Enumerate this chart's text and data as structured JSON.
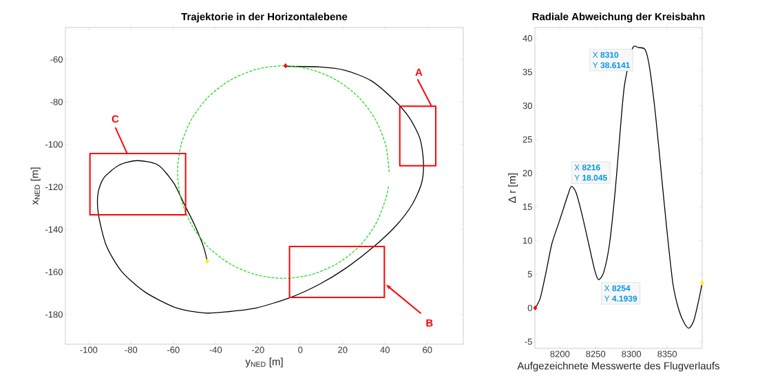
{
  "chart_data": [
    {
      "type": "line",
      "title": "Trajektorie in der Horizontalebene",
      "xlabel": "y$_{NED}$ [m]",
      "ylabel": "x$_{NED}$ [m]",
      "xlim": [
        -111,
        77
      ],
      "ylim": [
        -194,
        -45
      ],
      "xticks": [
        -100,
        -80,
        -60,
        -40,
        -20,
        0,
        20,
        40,
        60
      ],
      "yticks": [
        -180,
        -160,
        -140,
        -120,
        -100,
        -80,
        -60
      ],
      "series": [
        {
          "color": "#000000",
          "x": [
            -7.1,
            8.8,
            21.1,
            33.4,
            44.4,
            51.7,
            56.6,
            58.2,
            57.3,
            53.0,
            45.6,
            34.6,
            21.1,
            8.8,
            -4.7,
            -20.6,
            -34.1,
            -45.1,
            -58.6,
            -73.3,
            -84.4,
            -91.7,
            -95.4,
            -95.6,
            -92.9,
            -85.6,
            -77.0,
            -67.2,
            -59.8,
            -54.9,
            -50.0,
            -45.7,
            -43.9
          ],
          "values": [
            -63.3,
            -63.5,
            -65.1,
            -70.0,
            -79.2,
            -87.7,
            -97.5,
            -108.5,
            -118.2,
            -128.0,
            -137.8,
            -148.2,
            -158.5,
            -165.9,
            -172.0,
            -176.9,
            -178.7,
            -179.3,
            -176.9,
            -169.5,
            -159.8,
            -147.5,
            -132.9,
            -123.1,
            -115.8,
            -109.7,
            -107.6,
            -109.7,
            -118.2,
            -128.0,
            -137.8,
            -148.2,
            -155.5
          ]
        },
        {
          "color": "#22dd22",
          "line_style": "dashed",
          "x": [
            42,
            40.3,
            35.3,
            27.4,
            17,
            4.9,
            -8,
            -20.9,
            -33,
            -43.4,
            -51.3,
            -56.3,
            -58,
            -56.3,
            -51.3,
            -43.4,
            -33,
            -20.9,
            -8,
            4.9,
            17,
            27.4,
            35.3,
            40.3,
            41.6
          ],
          "values": [
            -113,
            -100.1,
            -88,
            -77.6,
            -69.7,
            -64.7,
            -63,
            -64.7,
            -69.7,
            -77.6,
            -88,
            -100.1,
            -113,
            -125.9,
            -138,
            -148.4,
            -156.3,
            -161.3,
            -163,
            -161.3,
            -156.3,
            -148.4,
            -138,
            -125.9,
            -119.5
          ]
        },
        {
          "type": "scatter",
          "color": "#ff0000",
          "marker": "diamond",
          "x": [
            -7
          ],
          "values": [
            -63
          ]
        },
        {
          "type": "scatter",
          "color": "#ffee00",
          "marker": "diamond",
          "x": [
            -44
          ],
          "values": [
            -155
          ]
        }
      ],
      "annotations": [
        "A",
        "B",
        "C"
      ]
    },
    {
      "type": "line",
      "title": "Radiale Abweichung der Kreisbahn",
      "xlabel": "Aufgezeichnete Messwerte des Flugverlaufs",
      "ylabel": "Δ r [m]",
      "xlim": [
        8165,
        8399
      ],
      "ylim": [
        -6,
        41.6
      ],
      "xticks": [
        8200,
        8250,
        8300,
        8350
      ],
      "yticks": [
        -5,
        0,
        5,
        10,
        15,
        20,
        25,
        30,
        35,
        40
      ],
      "series": [
        {
          "color": "#000000",
          "x": [
            8165.5,
            8172.6,
            8180.6,
            8188.7,
            8198.4,
            8204.8,
            8211.3,
            8216,
            8222.6,
            8230.6,
            8240.3,
            8248.4,
            8254,
            8261.3,
            8269.4,
            8277.4,
            8283.9,
            8290.3,
            8301.6,
            8310,
            8319.4,
            8325.8,
            8333.9,
            8341.9,
            8350,
            8358.1,
            8366.1,
            8374.2,
            8380.6,
            8387.1,
            8393.5,
            8399
          ],
          "values": [
            0,
            1.5,
            5.3,
            9.5,
            12.6,
            14.7,
            16.8,
            18.045,
            17.1,
            14.0,
            9.5,
            5.7,
            4.1939,
            5.3,
            9.5,
            17.4,
            25.7,
            33.0,
            38.5,
            38.6141,
            38.3,
            35.4,
            28.5,
            19.9,
            11.2,
            3.6,
            -0.2,
            -2.3,
            -3.0,
            -1.95,
            0.8,
            3.7
          ]
        },
        {
          "type": "scatter",
          "color": "#ff0000",
          "marker": "diamond",
          "x": [
            8165.5
          ],
          "values": [
            0
          ]
        },
        {
          "type": "scatter",
          "color": "#ffee00",
          "marker": "diamond",
          "x": [
            8399
          ],
          "values": [
            3.7
          ]
        }
      ],
      "annotations": [
        {
          "text": "X **8310**",
          "x": 8310,
          "y": 38.6141
        },
        {
          "text": "Y **38.6141**",
          "x": 8310,
          "y": 38.6141
        },
        {
          "text": "X **8216**",
          "x": 8216,
          "y": 18.045
        },
        {
          "text": "Y **18.045**",
          "x": 8216,
          "y": 18.045
        },
        {
          "text": "X **8254**",
          "x": 8254,
          "y": 4.1939
        },
        {
          "text": "Y **4.1939**",
          "x": 8254,
          "y": 4.1939
        }
      ]
    }
  ]
}
